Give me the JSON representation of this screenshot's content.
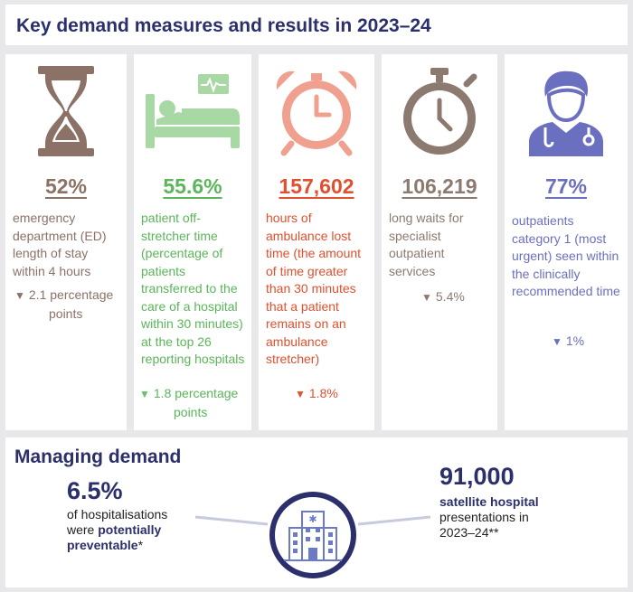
{
  "title": "Key demand measures and results in 2023–24",
  "colors": {
    "navy": "#2b2f6b",
    "brown": "#8b7166",
    "green": "#5bb55a",
    "red": "#e0502e",
    "purple": "#6b6fbf",
    "down_green": "#6abf69",
    "grey_brown": "#8c7a70"
  },
  "cards": [
    {
      "icon": "hourglass-icon",
      "value": "52%",
      "description": "emergency department (ED) length of stay within 4 hours",
      "change_line1": "2.1 percentage",
      "change_line2": "points"
    },
    {
      "icon": "hospital-bed-icon",
      "value": "55.6%",
      "description": "patient off-stretcher time (percentage of patients transferred to the care of a hospital within 30 minutes) at the top 26 reporting hospitals",
      "change_line1": "1.8 percentage",
      "change_line2": "points"
    },
    {
      "icon": "alarm-clock-icon",
      "value": "157,602",
      "description": "hours of ambulance lost time (the amount of time greater than 30 minutes that a patient remains on an ambulance stretcher)",
      "change_line1": "1.8%"
    },
    {
      "icon": "stopwatch-icon",
      "value": "106,219",
      "description": "long waits for specialist outpatient services",
      "change_line1": "5.4%"
    },
    {
      "icon": "doctor-icon",
      "value": "77%",
      "description": "outpatients category 1 (most urgent) seen within the clinically recommended time",
      "change_line1": "1%"
    }
  ],
  "managing": {
    "title": "Managing demand",
    "left_value": "6.5%",
    "left_text1": "of hospitalisations",
    "left_text2_plain": "were ",
    "left_text2_bold": "potentially",
    "left_text3_bold": "preventable",
    "left_text3_plain": "*",
    "right_value": "91,000",
    "right_text1_bold": "satellite hospital",
    "right_text2": "presentations in",
    "right_text3": "2023–24**",
    "center_icon": "hospital-building-icon"
  }
}
